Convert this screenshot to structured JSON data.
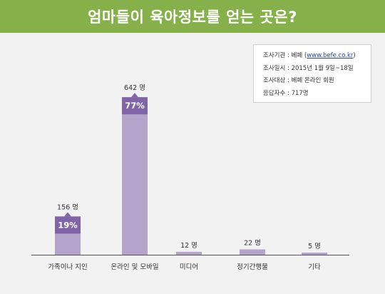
{
  "title": "엄마들이 육아정보를 얻는 곳은?",
  "info": [
    {
      "label": "조사기관",
      "sep": " : ",
      "value_pre": "베페 (",
      "link": "www.befe.co.kr",
      "value_post": ")"
    },
    {
      "label": "조사일시",
      "sep": " : ",
      "value_pre": "2015년 1월 9일~18일",
      "link": "",
      "value_post": ""
    },
    {
      "label": "조사대상",
      "sep": " : ",
      "value_pre": "베페 온라인 회원",
      "link": "",
      "value_post": ""
    },
    {
      "label": "응답자수",
      "sep": " : ",
      "value_pre": "717명",
      "link": "",
      "value_post": ""
    }
  ],
  "chart_data": {
    "type": "bar",
    "categories": [
      "가족이나 지인",
      "온라인 및 모바일",
      "미디어",
      "정기간행물",
      "기타"
    ],
    "values": [
      156,
      642,
      12,
      22,
      5
    ],
    "value_labels": [
      "156 명",
      "642 명",
      "12 명",
      "22 명",
      "5 명"
    ],
    "percent_labels": [
      "19%",
      "77%",
      "",
      "",
      ""
    ],
    "ylim": [
      0,
      660
    ],
    "grid": false,
    "legend": "none"
  },
  "colors": {
    "header": "#86b04a",
    "background": "#f2f2f2",
    "bar": "#b4a4cc",
    "bar_highlight": "#7f65a8",
    "axis": "#555555"
  }
}
